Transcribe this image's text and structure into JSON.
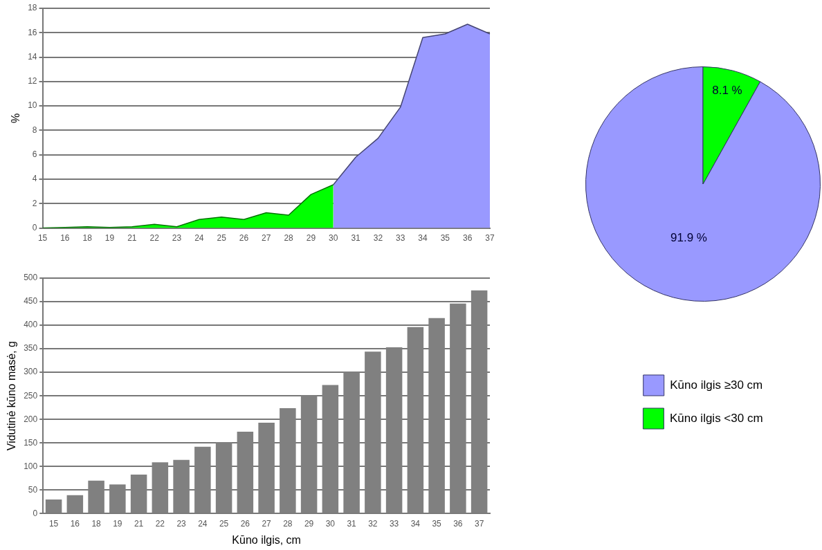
{
  "chart_data": [
    {
      "type": "area",
      "ylabel": "%",
      "categories": [
        "15",
        "16",
        "18",
        "19",
        "21",
        "22",
        "23",
        "24",
        "25",
        "26",
        "27",
        "28",
        "29",
        "30",
        "31",
        "32",
        "33",
        "34",
        "35",
        "36",
        "37"
      ],
      "series": [
        {
          "color": "#00ff00",
          "values": [
            0,
            0.05,
            0.1,
            0.05,
            0.1,
            0.3,
            0.1,
            0.7,
            0.9,
            0.7,
            1.25,
            1.05,
            2.75,
            3.55,
            null,
            null,
            null,
            null,
            null,
            null,
            null
          ]
        },
        {
          "color": "#9999ff",
          "values": [
            null,
            null,
            null,
            null,
            null,
            null,
            null,
            null,
            null,
            null,
            null,
            null,
            null,
            3.55,
            5.8,
            7.35,
            9.9,
            15.6,
            15.9,
            16.7,
            15.9
          ]
        }
      ],
      "ylim": [
        0,
        18
      ],
      "yticks": [
        0,
        2,
        4,
        6,
        8,
        10,
        12,
        14,
        16,
        18
      ],
      "grid": "y",
      "legend": false
    },
    {
      "type": "pie",
      "categories": [
        "Kūno ilgis ≥30 cm",
        "Kūno ilgis <30 cm"
      ],
      "values": [
        91.9,
        8.1
      ],
      "colors": [
        "#9999ff",
        "#00ff00"
      ],
      "value_labels": [
        "91.9 %",
        "8.1 %"
      ],
      "legend": "bottom"
    },
    {
      "type": "bar",
      "xlabel": "Kūno ilgis, cm",
      "ylabel": "Vidutinė kūno masė, g",
      "categories": [
        "15",
        "16",
        "18",
        "19",
        "21",
        "22",
        "23",
        "24",
        "25",
        "26",
        "27",
        "28",
        "29",
        "30",
        "31",
        "32",
        "33",
        "34",
        "35",
        "36",
        "37"
      ],
      "values": [
        30,
        39,
        70,
        62,
        83,
        109,
        114,
        142,
        152,
        174,
        193,
        224,
        251,
        273,
        301,
        344,
        353,
        396,
        415,
        446,
        474
      ],
      "color": "#808080",
      "ylim": [
        0,
        500
      ],
      "yticks": [
        0,
        50,
        100,
        150,
        200,
        250,
        300,
        350,
        400,
        450,
        500
      ],
      "grid": "y",
      "legend": false
    }
  ]
}
